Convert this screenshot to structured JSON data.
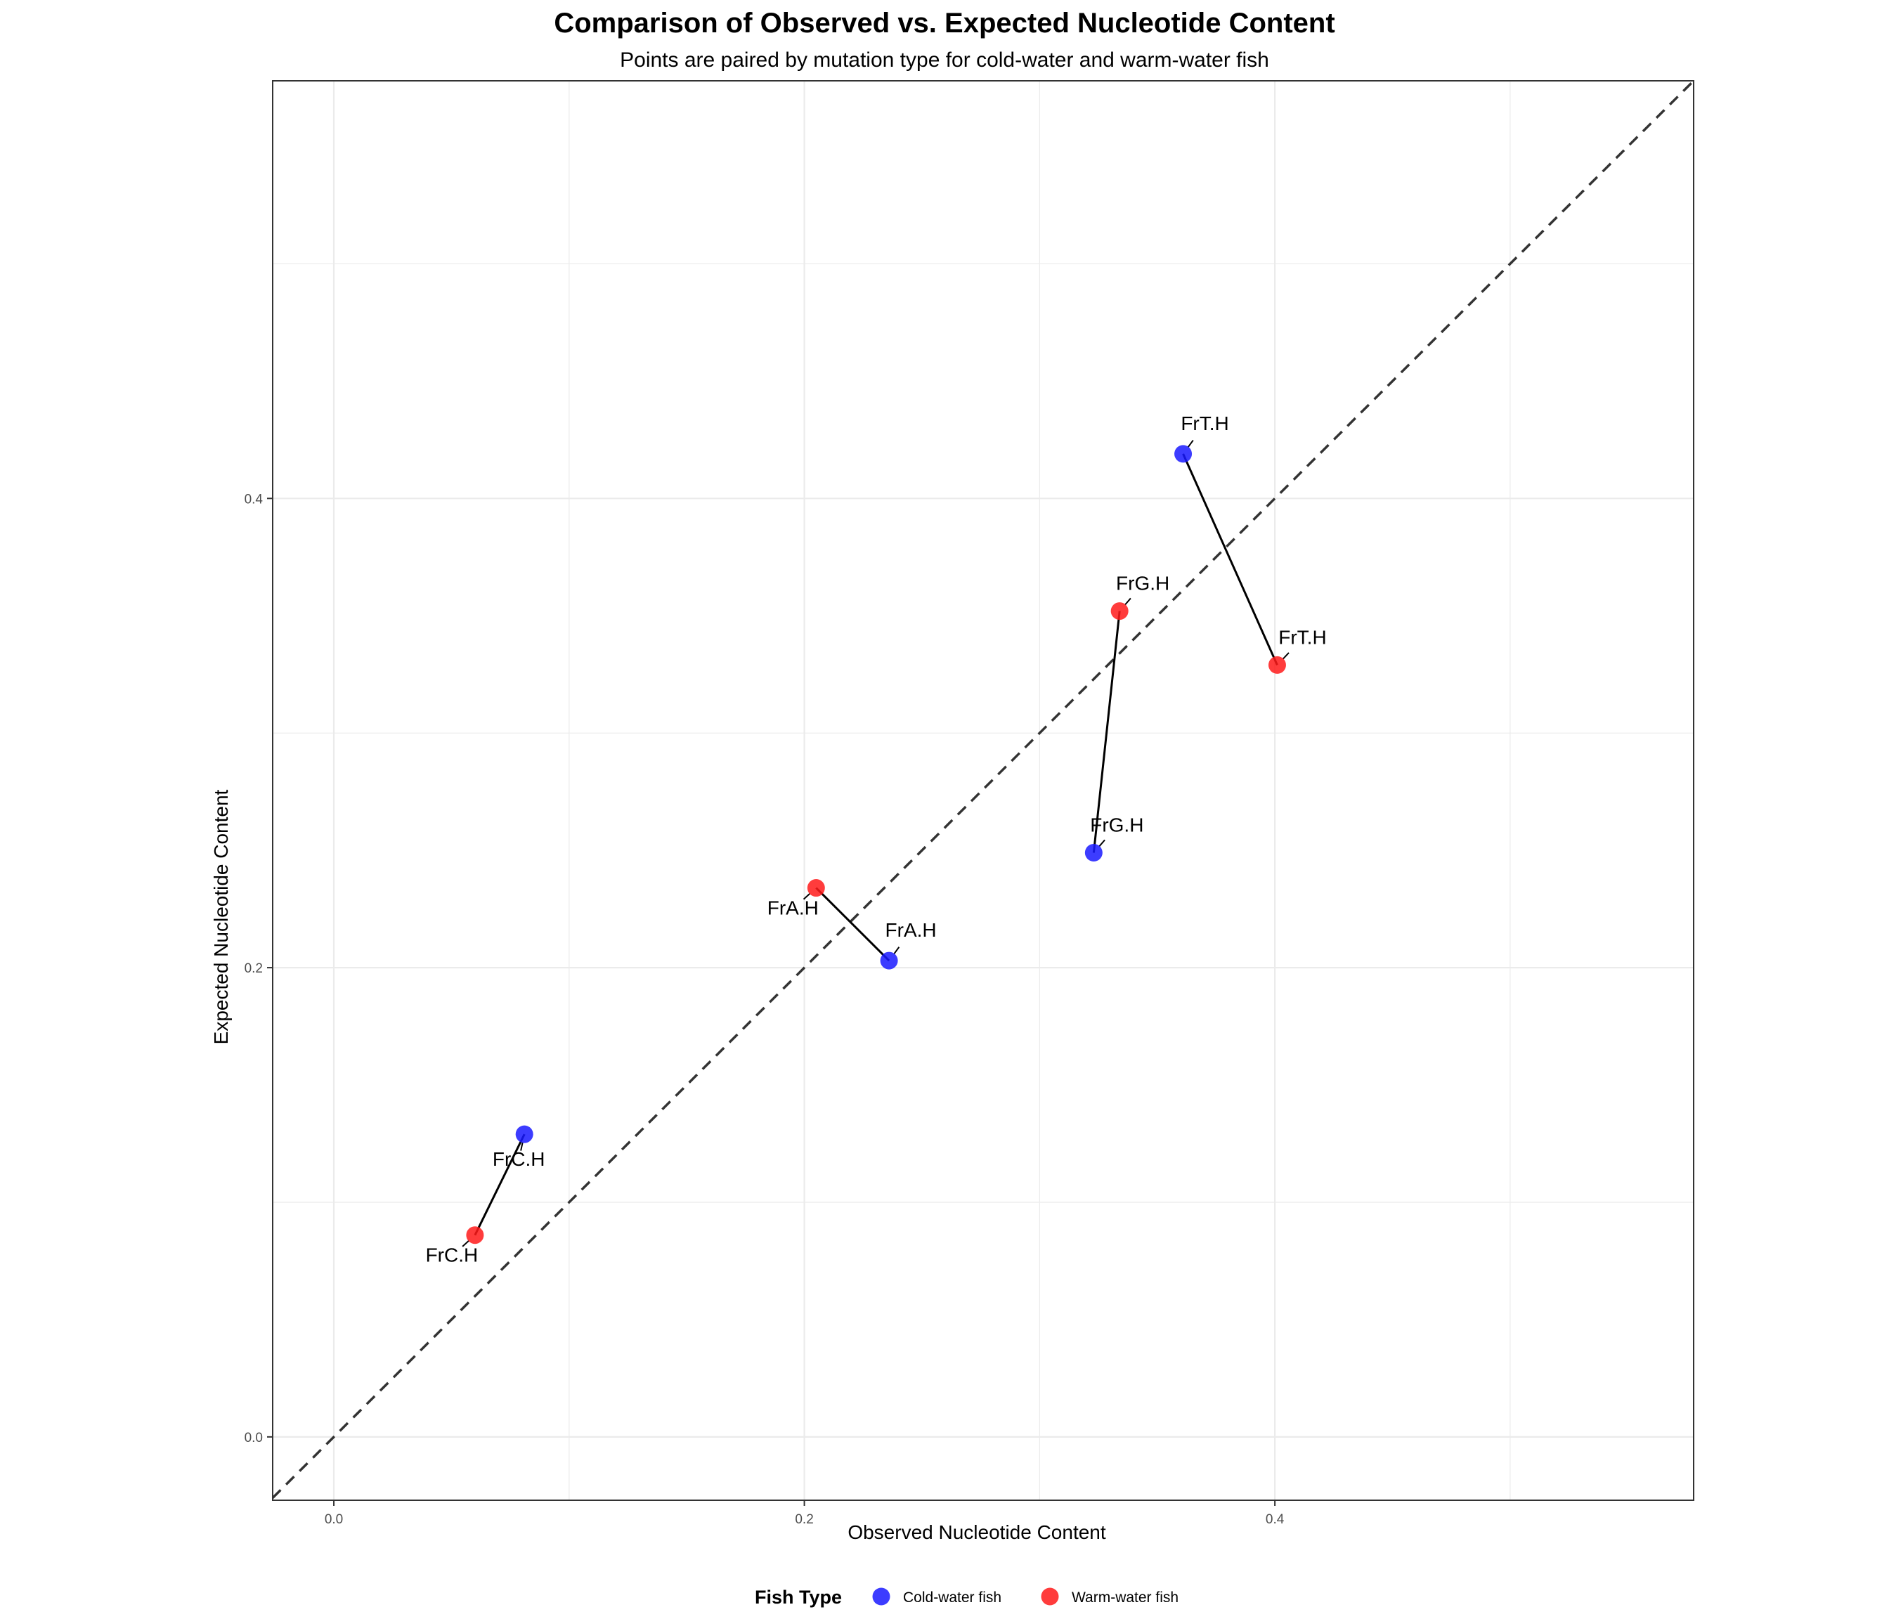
{
  "chart_data": {
    "type": "scatter",
    "title": "Comparison of Observed vs. Expected Nucleotide Content",
    "subtitle": "Points are paired by mutation type for cold-water and warm-water fish",
    "xlabel": "Observed Nucleotide Content",
    "ylabel": "Expected Nucleotide Content",
    "xlim": [
      -0.026,
      0.578
    ],
    "ylim": [
      -0.027,
      0.578
    ],
    "x_ticks": [
      "0.0",
      "0.2",
      "0.4"
    ],
    "y_ticks": [
      "0.0",
      "0.2",
      "0.4"
    ],
    "grid": true,
    "reference_line": "y = x (dashed)",
    "legend": {
      "title": "Fish Type",
      "position": "bottom",
      "items": [
        {
          "label": "Cold-water fish",
          "color": "#1a1aff"
        },
        {
          "label": "Warm-water fish",
          "color": "#ff1a1a"
        }
      ]
    },
    "series": [
      {
        "name": "Cold-water fish",
        "color": "#1a1aff",
        "points": [
          {
            "label": "FrC.H",
            "x": 0.081,
            "y": 0.129
          },
          {
            "label": "FrA.H",
            "x": 0.236,
            "y": 0.203
          },
          {
            "label": "FrG.H",
            "x": 0.323,
            "y": 0.249
          },
          {
            "label": "FrT.H",
            "x": 0.361,
            "y": 0.419
          }
        ]
      },
      {
        "name": "Warm-water fish",
        "color": "#ff1a1a",
        "points": [
          {
            "label": "FrC.H",
            "x": 0.06,
            "y": 0.086
          },
          {
            "label": "FrA.H",
            "x": 0.205,
            "y": 0.234
          },
          {
            "label": "FrG.H",
            "x": 0.334,
            "y": 0.352
          },
          {
            "label": "FrT.H",
            "x": 0.401,
            "y": 0.329
          }
        ]
      }
    ],
    "pairs": [
      [
        "FrC.H",
        "FrC.H"
      ],
      [
        "FrA.H",
        "FrA.H"
      ],
      [
        "FrG.H",
        "FrG.H"
      ],
      [
        "FrT.H",
        "FrT.H"
      ]
    ]
  }
}
